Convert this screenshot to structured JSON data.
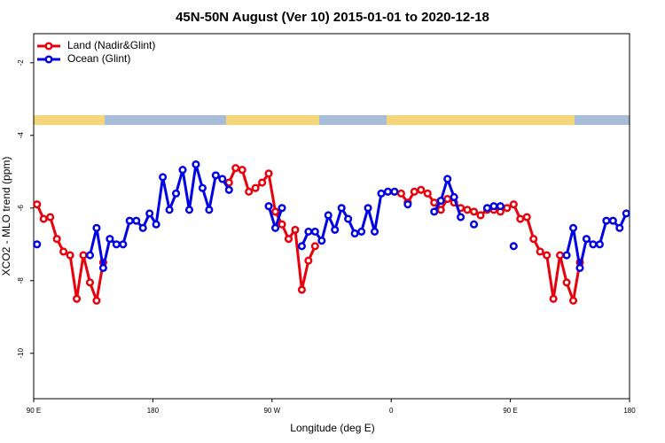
{
  "chart_data": {
    "type": "line",
    "title": "45N-50N August (Ver 10)   2015-01-01 to 2020-12-18",
    "x_label": "Longitude (deg E)",
    "y_label": "XCO2 - MLO trend (ppm)",
    "xlim": [
      90,
      540
    ],
    "xticks": [
      {
        "value": 90,
        "label": "90 E"
      },
      180,
      {
        "value": 270,
        "label": "90 W"
      },
      {
        "value": 360,
        "label": "0"
      },
      {
        "value": 450,
        "label": "90 E"
      },
      {
        "value": 540,
        "label": "180"
      }
    ],
    "ylim": [
      -11.25,
      -1.2
    ],
    "yticks": [
      -2,
      -4,
      -6,
      -8,
      -10
    ],
    "legend": "top-left",
    "x": [
      92.5,
      97.5,
      102.5,
      107.5,
      112.5,
      117.5,
      122.5,
      127.5,
      132.5,
      137.5,
      142.5,
      147.5,
      152.5,
      157.5,
      162.5,
      167.5,
      172.5,
      177.5,
      182.5,
      187.5,
      192.5,
      197.5,
      202.5,
      207.5,
      212.5,
      217.5,
      222.5,
      227.5,
      232.5,
      237.5,
      242.5,
      247.5,
      252.5,
      257.5,
      262.5,
      267.5,
      272.5,
      277.5,
      282.5,
      287.5,
      292.5,
      297.5,
      302.5,
      307.5,
      312.5,
      317.5,
      322.5,
      327.5,
      332.5,
      337.5,
      342.5,
      347.5,
      352.5,
      357.5,
      362.5,
      367.5,
      372.5,
      377.5,
      382.5,
      387.5,
      392.5,
      397.5,
      402.5,
      407.5,
      412.5,
      417.5,
      422.5,
      427.5,
      432.5,
      437.5,
      442.5,
      447.5,
      452.5,
      457.5,
      462.5,
      467.5,
      472.5,
      477.5,
      482.5,
      487.5,
      492.5,
      497.5,
      502.5,
      507.5,
      512.5,
      517.5,
      522.5,
      527.5,
      532.5,
      537.5
    ],
    "series": [
      {
        "name": "Land (Nadir&Glint)",
        "color": "#e8000b",
        "values": [
          -5.9,
          -6.3,
          -6.25,
          -6.85,
          -7.2,
          -7.3,
          -8.5,
          -7.3,
          -8.05,
          -8.55,
          -7.5,
          null,
          null,
          null,
          null,
          null,
          null,
          null,
          null,
          null,
          null,
          null,
          null,
          null,
          null,
          null,
          null,
          null,
          null,
          -5.3,
          -4.9,
          -4.95,
          -5.55,
          -5.45,
          -5.3,
          -5.05,
          -6.1,
          -6.45,
          -6.85,
          -6.6,
          -8.25,
          -7.45,
          -7.05,
          null,
          null,
          null,
          null,
          null,
          null,
          null,
          null,
          null,
          null,
          -5.55,
          -5.55,
          -5.6,
          -5.85,
          -5.55,
          -5.5,
          -5.6,
          -5.85,
          -6.05,
          -5.75,
          -5.85,
          -6.0,
          -6.05,
          -6.1,
          -6.2,
          -6.05,
          -6.05,
          -6.1,
          -6.0,
          -5.9,
          -6.3,
          -6.25,
          -6.85,
          -7.2,
          -7.3,
          -8.5,
          -7.3,
          -8.05,
          -8.55,
          -7.5,
          null,
          null,
          null,
          null,
          null,
          null,
          null
        ]
      },
      {
        "name": "Ocean (Glint)",
        "color": "#0000e6",
        "values": [
          -7.0,
          null,
          null,
          null,
          null,
          null,
          null,
          null,
          -7.3,
          -6.55,
          -7.65,
          -6.85,
          -7.0,
          -7.0,
          -6.35,
          -6.35,
          -6.55,
          -6.15,
          -6.45,
          -5.15,
          -6.05,
          -5.6,
          -4.95,
          -6.05,
          -4.8,
          -5.45,
          -6.05,
          -5.1,
          -5.2,
          -5.5,
          null,
          null,
          null,
          null,
          null,
          -5.95,
          -6.55,
          -6.0,
          null,
          null,
          -7.05,
          -6.65,
          -6.65,
          -6.9,
          -6.2,
          -6.6,
          -6.0,
          -6.3,
          -6.7,
          -6.65,
          -6.0,
          -6.65,
          -5.6,
          -5.55,
          -5.55,
          null,
          -5.9,
          null,
          null,
          null,
          -6.1,
          -5.8,
          -5.2,
          -5.7,
          -6.25,
          null,
          -6.45,
          null,
          -6.0,
          -5.95,
          -5.95,
          null,
          -7.05,
          null,
          null,
          null,
          null,
          null,
          null,
          null,
          -7.3,
          -6.55,
          -7.65,
          -6.85,
          -7.0,
          -7.0,
          -6.35,
          -6.35,
          -6.55,
          -6.15
        ]
      }
    ]
  }
}
